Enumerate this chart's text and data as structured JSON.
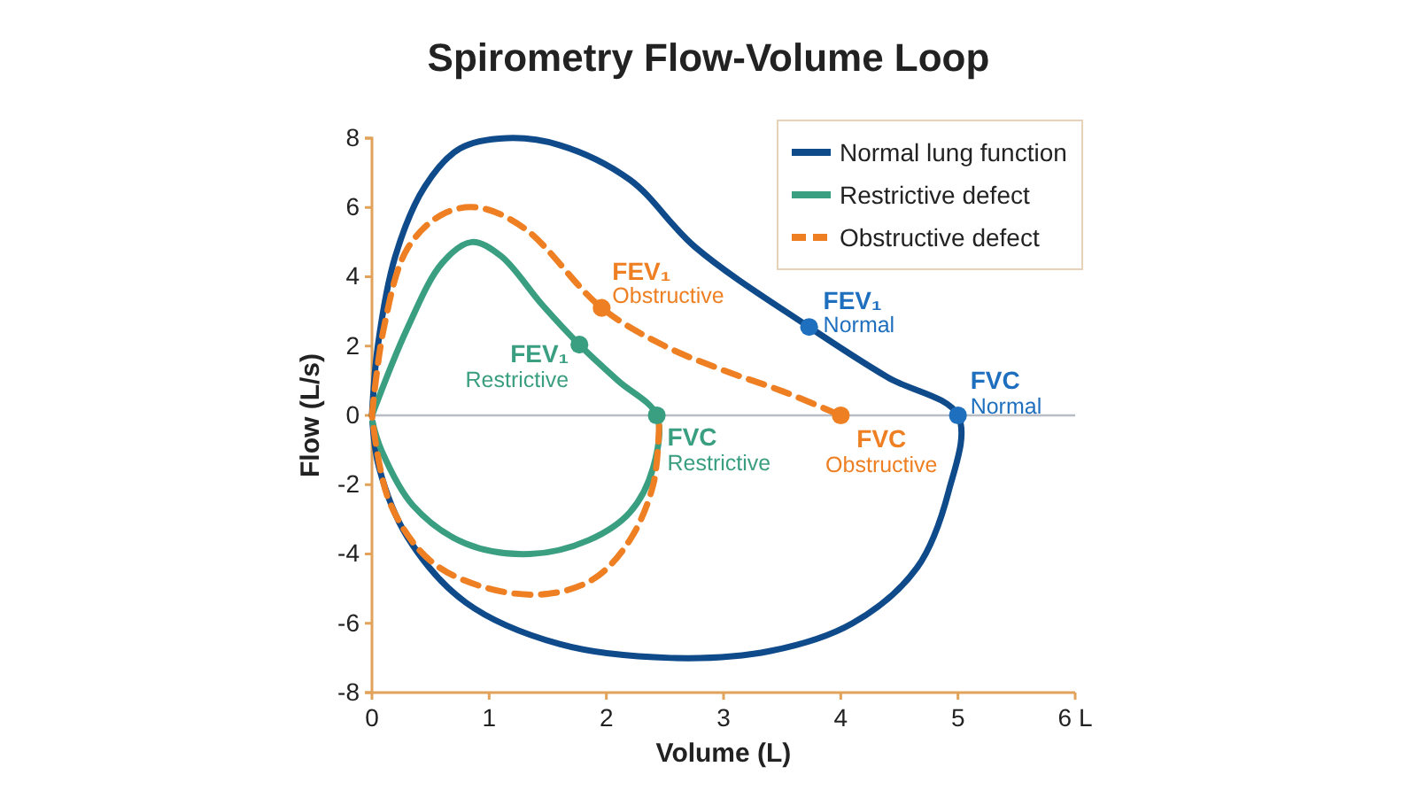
{
  "chart_data": {
    "type": "line",
    "title": "Spirometry Flow-Volume Loop",
    "xlabel": "Volume (L)",
    "ylabel": "Flow (L/s)",
    "xlim": [
      0,
      6
    ],
    "xticks": [
      0,
      1,
      2,
      3,
      4,
      5,
      {
        "value": 6,
        "label": "6 L"
      }
    ],
    "ylim": [
      -8,
      8
    ],
    "yticks": [
      -8,
      -6,
      -4,
      -2,
      0,
      2,
      4,
      6,
      8
    ],
    "grid": false,
    "legend": "top right",
    "marker": "none",
    "ref_lines": [
      {
        "axis": "y",
        "value": 0,
        "color": "#b8bcc4"
      }
    ],
    "series": [
      {
        "name": "Normal lung function",
        "color": "#0f4a8a",
        "line_style": "solid",
        "x": [
          0,
          0.05,
          0.2,
          0.45,
          0.75,
          1.15,
          1.6,
          2.2,
          2.76,
          3.73,
          4.4,
          5,
          4.92,
          4.65,
          4.1,
          3.4,
          2.55,
          1.6,
          0.8,
          0.3,
          0.06,
          0.005
        ],
        "values": [
          0,
          2,
          4.6,
          6.6,
          7.7,
          8,
          7.8,
          6.8,
          4.85,
          2.55,
          1.1,
          0,
          -2.2,
          -4.4,
          -6,
          -6.8,
          -7,
          -6.6,
          -5.4,
          -3.5,
          -1.5,
          -0.2
        ]
      },
      {
        "name": "Restrictive defect",
        "color": "#3a9e80",
        "line_style": "solid",
        "x": [
          0,
          0.3,
          0.6,
          0.85,
          1.1,
          1.45,
          1.77,
          2.1,
          2.43,
          2.4,
          2.2,
          1.85,
          1.35,
          0.8,
          0.35,
          0.08,
          0.005
        ],
        "values": [
          0,
          2.5,
          4.4,
          5,
          4.6,
          3.2,
          2.04,
          1,
          0,
          -1.5,
          -2.8,
          -3.6,
          -4,
          -3.7,
          -2.6,
          -1,
          -0.2
        ]
      },
      {
        "name": "Obstructive defect",
        "color": "#ee7f22",
        "line_style": "dashed",
        "x": [
          0,
          0.1,
          0.3,
          0.6,
          0.9,
          1.3,
          1.96,
          2.5,
          3,
          3.5,
          4,
          null,
          2.45,
          2.4,
          2.2,
          1.9,
          1.5,
          1,
          0.5,
          0.15,
          0
        ],
        "values": [
          0,
          2.5,
          4.8,
          5.8,
          6,
          5.4,
          3.1,
          2,
          1.3,
          0.7,
          0,
          null,
          -0.3,
          -2,
          -3.6,
          -4.7,
          -5.15,
          -5,
          -4.2,
          -2.5,
          0
        ]
      },
      {
        "type": "scatter",
        "marker": "circle",
        "color": "#1f6fbf",
        "x": [
          3.73,
          5
        ],
        "values": [
          2.55,
          0
        ]
      },
      {
        "type": "scatter",
        "marker": "circle",
        "color": "#3a9e80",
        "x": [
          1.77,
          2.43
        ],
        "values": [
          2.04,
          0
        ]
      },
      {
        "type": "scatter",
        "marker": "circle",
        "color": "#ee7f22",
        "x": [
          1.96,
          4
        ],
        "values": [
          3.1,
          0
        ]
      }
    ],
    "annotations": [
      {
        "text": "FEV₁",
        "x": 3.73,
        "y": 2.55
      },
      {
        "text": "Normal",
        "x": 3.73,
        "y": 2.55
      },
      {
        "text": "FVC",
        "x": 5,
        "y": 0
      },
      {
        "text": "Normal",
        "x": 5,
        "y": 0
      },
      {
        "text": "FEV₁",
        "x": 1.77,
        "y": 2.04
      },
      {
        "text": "Restrictive",
        "x": 1.77,
        "y": 2.04
      },
      {
        "text": "FVC",
        "x": 2.43,
        "y": 0
      },
      {
        "text": "Restrictive",
        "x": 2.43,
        "y": 0
      },
      {
        "text": "FEV₁",
        "x": 1.96,
        "y": 3.1
      },
      {
        "text": "Obstructive",
        "x": 1.96,
        "y": 3.1
      },
      {
        "text": "FVC",
        "x": 4,
        "y": 0
      },
      {
        "text": "Obstructive",
        "x": 4,
        "y": 0
      }
    ]
  }
}
